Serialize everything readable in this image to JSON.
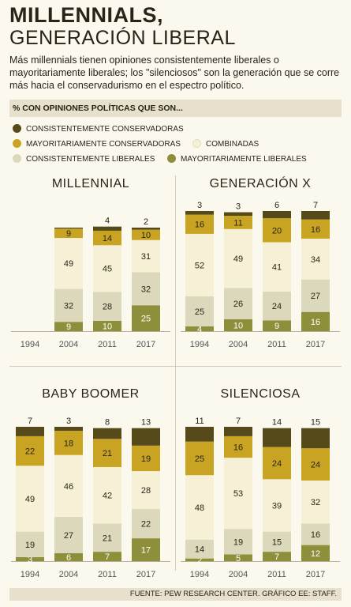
{
  "title_line1": "MILLENNIALS,",
  "title_line2": "GENERACIÓN LIBERAL",
  "subtitle": "Más millennials tienen opiniones consistentemente liberales o mayoritariamente liberales; los \"silenciosos\" son la generación que se corre más hacia el conservadurismo en el espectro político.",
  "legend_heading": "% CON OPINIONES POLÍTICAS QUE SON...",
  "colors": {
    "consistently_conservative": "#564a1a",
    "mostly_conservative": "#c9a423",
    "mixed": "#f6f1d6",
    "consistently_liberal": "#dcd8bc",
    "mostly_liberal": "#8e8f3a"
  },
  "legend": [
    {
      "label": "CONSISTENTEMENTE CONSERVADORAS",
      "color": "#564a1a"
    },
    {
      "label": "MAYORITARIAMENTE CONSERVADORAS",
      "color": "#c9a423"
    },
    {
      "label": "COMBINADAS",
      "color": "#f6f1d6"
    },
    {
      "label": "CONSISTENTEMENTE LIBERALES",
      "color": "#dcd8bc"
    },
    {
      "label": "MAYORITARIAMENTE LIBERALES",
      "color": "#8e8f3a"
    }
  ],
  "source": "FUENTE: PEW RESEARCH CENTER. GRÁFICO EE: STAFF.",
  "chart_data": [
    {
      "type": "bar",
      "stacked": true,
      "title": "MILLENNIAL",
      "categories": [
        "1994",
        "2004",
        "2011",
        "2017"
      ],
      "series": [
        {
          "name": "MAYORITARIAMENTE LIBERALES",
          "values": [
            null,
            9,
            10,
            25
          ]
        },
        {
          "name": "CONSISTENTEMENTE LIBERALES",
          "values": [
            null,
            32,
            28,
            32
          ]
        },
        {
          "name": "COMBINADAS",
          "values": [
            null,
            49,
            45,
            31
          ]
        },
        {
          "name": "MAYORITARIAMENTE CONSERVADORAS",
          "values": [
            null,
            9,
            14,
            10
          ]
        },
        {
          "name": "CONSISTENTEMENTE CONSERVADORAS",
          "values": [
            null,
            1,
            4,
            2
          ]
        }
      ],
      "labels": [
        [
          null,
          null,
          null,
          null,
          null
        ],
        [
          "9",
          "32",
          "49",
          "9",
          ""
        ],
        [
          "10",
          "28",
          "45",
          "14",
          "4"
        ],
        [
          "25",
          "32",
          "31",
          "10",
          "2"
        ]
      ]
    },
    {
      "type": "bar",
      "stacked": true,
      "title": "GENERACIÓN X",
      "categories": [
        "1994",
        "2004",
        "2011",
        "2017"
      ],
      "series": [
        {
          "name": "MAYORITARIAMENTE LIBERALES",
          "values": [
            4,
            10,
            9,
            16
          ]
        },
        {
          "name": "CONSISTENTEMENTE LIBERALES",
          "values": [
            25,
            26,
            24,
            27
          ]
        },
        {
          "name": "COMBINADAS",
          "values": [
            52,
            49,
            41,
            34
          ]
        },
        {
          "name": "MAYORITARIAMENTE CONSERVADORAS",
          "values": [
            16,
            11,
            20,
            16
          ]
        },
        {
          "name": "CONSISTENTEMENTE CONSERVADORAS",
          "values": [
            3,
            3,
            6,
            7
          ]
        }
      ],
      "labels": [
        [
          "4",
          "25",
          "52",
          "16",
          "3"
        ],
        [
          "10",
          "26",
          "49",
          "11",
          "3"
        ],
        [
          "9",
          "24",
          "41",
          "20",
          "6"
        ],
        [
          "16",
          "27",
          "34",
          "16",
          "7"
        ]
      ]
    },
    {
      "type": "bar",
      "stacked": true,
      "title": "BABY BOOMER",
      "categories": [
        "1994",
        "2004",
        "2011",
        "2017"
      ],
      "series": [
        {
          "name": "MAYORITARIAMENTE LIBERALES",
          "values": [
            3,
            6,
            7,
            17
          ]
        },
        {
          "name": "CONSISTENTEMENTE LIBERALES",
          "values": [
            19,
            27,
            21,
            22
          ]
        },
        {
          "name": "COMBINADAS",
          "values": [
            49,
            46,
            42,
            28
          ]
        },
        {
          "name": "MAYORITARIAMENTE CONSERVADORAS",
          "values": [
            22,
            18,
            21,
            19
          ]
        },
        {
          "name": "CONSISTENTEMENTE CONSERVADORAS",
          "values": [
            7,
            3,
            8,
            13
          ]
        }
      ],
      "labels": [
        [
          "3",
          "19",
          "49",
          "22",
          "7"
        ],
        [
          "6",
          "27",
          "46",
          "18",
          "3"
        ],
        [
          "7",
          "21",
          "42",
          "21",
          "8"
        ],
        [
          "17",
          "22",
          "28",
          "19",
          "13"
        ]
      ]
    },
    {
      "type": "bar",
      "stacked": true,
      "title": "SILENCIOSA",
      "categories": [
        "1994",
        "2004",
        "2011",
        "2017"
      ],
      "series": [
        {
          "name": "MAYORITARIAMENTE LIBERALES",
          "values": [
            2,
            5,
            7,
            12
          ]
        },
        {
          "name": "CONSISTENTEMENTE LIBERALES",
          "values": [
            14,
            19,
            15,
            16
          ]
        },
        {
          "name": "COMBINADAS",
          "values": [
            48,
            53,
            39,
            32
          ]
        },
        {
          "name": "MAYORITARIAMENTE CONSERVADORAS",
          "values": [
            25,
            16,
            24,
            24
          ]
        },
        {
          "name": "CONSISTENTEMENTE CONSERVADORAS",
          "values": [
            11,
            7,
            14,
            15
          ]
        }
      ],
      "labels": [
        [
          "2",
          "14",
          "48",
          "25",
          "11"
        ],
        [
          "5",
          "19",
          "53",
          "16",
          "7"
        ],
        [
          "7",
          "15",
          "39",
          "24",
          "14"
        ],
        [
          "12",
          "16",
          "32",
          "24",
          "15"
        ]
      ]
    }
  ]
}
